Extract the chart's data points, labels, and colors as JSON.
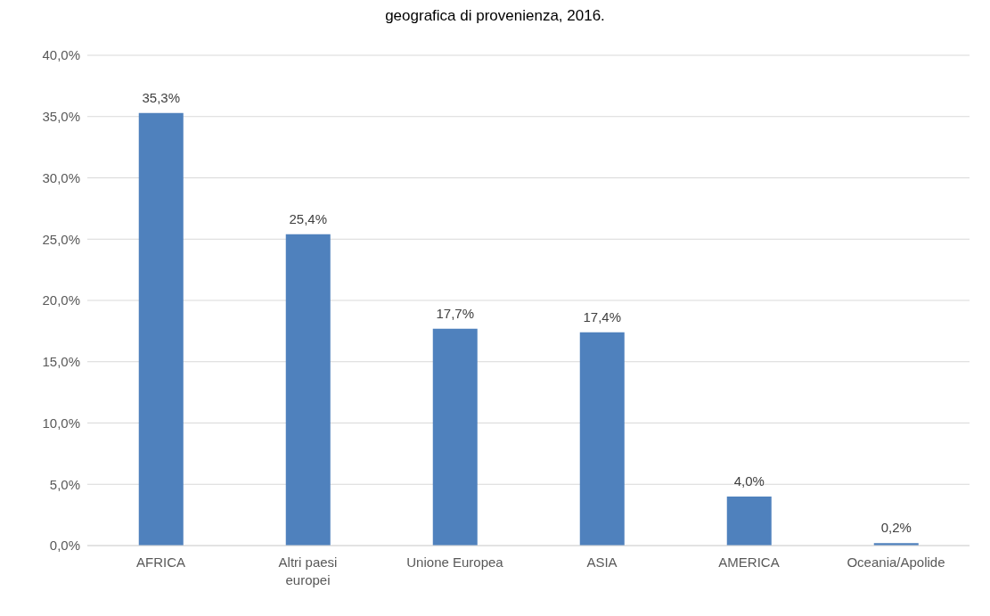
{
  "chart_data": {
    "type": "bar",
    "title": "geografica di provenienza, 2016.",
    "categories": [
      "AFRICA",
      "Altri paesi europei",
      "Unione Europea",
      "ASIA",
      "AMERICA",
      "Oceania/Apolide"
    ],
    "values": [
      35.3,
      25.4,
      17.7,
      17.4,
      4.0,
      0.2
    ],
    "value_labels": [
      "35,3%",
      "25,4%",
      "17,7%",
      "17,4%",
      "4,0%",
      "0,2%"
    ],
    "color": "#4f81bd",
    "ylim": [
      0,
      40
    ],
    "yticks": [
      {
        "value": 0,
        "label": "0,0%"
      },
      {
        "value": 5,
        "label": "5,0%"
      },
      {
        "value": 10,
        "label": "10,0%"
      },
      {
        "value": 15,
        "label": "15,0%"
      },
      {
        "value": 20,
        "label": "20,0%"
      },
      {
        "value": 25,
        "label": "25,0%"
      },
      {
        "value": 30,
        "label": "30,0%"
      },
      {
        "value": 35,
        "label": "35,0%"
      },
      {
        "value": 40,
        "label": "40,0%"
      }
    ],
    "grid": "y"
  }
}
